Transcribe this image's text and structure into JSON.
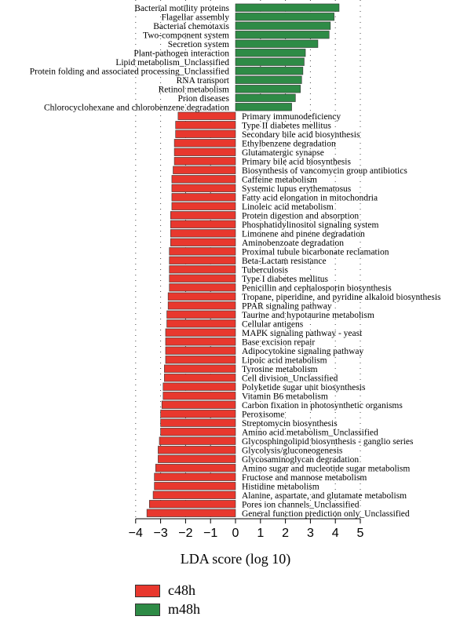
{
  "chart_data": {
    "type": "bar",
    "orientation": "horizontal",
    "xlabel": "LDA score (log 10)",
    "xlim": [
      -4,
      5
    ],
    "xticks": [
      "−4",
      "−3",
      "−2",
      "−1",
      "0",
      "1",
      "2",
      "3",
      "4",
      "5"
    ],
    "grid": "dotted vertical",
    "legend_position": "bottom-left",
    "series": [
      {
        "name": "c48h",
        "color": "#e8382e"
      },
      {
        "name": "m48h",
        "color": "#2e8b46"
      }
    ],
    "bars": [
      {
        "label": "Bacterial motility proteins",
        "value": 4.15,
        "group": "m48h"
      },
      {
        "label": "Flagellar assembly",
        "value": 3.95,
        "group": "m48h"
      },
      {
        "label": "Bacterial chemotaxis",
        "value": 3.8,
        "group": "m48h"
      },
      {
        "label": "Two-component system",
        "value": 3.75,
        "group": "m48h"
      },
      {
        "label": "Secretion system",
        "value": 3.3,
        "group": "m48h"
      },
      {
        "label": "Plant-pathogen interaction",
        "value": 2.8,
        "group": "m48h"
      },
      {
        "label": "Lipid metabolism_Unclassified",
        "value": 2.75,
        "group": "m48h"
      },
      {
        "label": "Protein folding and associated processing_Unclassified",
        "value": 2.7,
        "group": "m48h"
      },
      {
        "label": "RNA transport",
        "value": 2.65,
        "group": "m48h"
      },
      {
        "label": "Retinol metabolism",
        "value": 2.6,
        "group": "m48h"
      },
      {
        "label": "Prion diseases",
        "value": 2.4,
        "group": "m48h"
      },
      {
        "label": "Chlorocyclohexane and chlorobenzene degradation",
        "value": 2.25,
        "group": "m48h"
      },
      {
        "label": "Primary immunodeficiency",
        "value": -2.3,
        "group": "c48h"
      },
      {
        "label": "Type II diabetes mellitus",
        "value": -2.4,
        "group": "c48h"
      },
      {
        "label": "Secondary bile acid biosynthesis",
        "value": -2.4,
        "group": "c48h"
      },
      {
        "label": "Ethylbenzene degradation",
        "value": -2.45,
        "group": "c48h"
      },
      {
        "label": "Glutamatergic synapse",
        "value": -2.45,
        "group": "c48h"
      },
      {
        "label": "Primary bile acid biosynthesis",
        "value": -2.45,
        "group": "c48h"
      },
      {
        "label": "Biosynthesis of vancomycin group antibiotics",
        "value": -2.5,
        "group": "c48h"
      },
      {
        "label": "Caffeine metabolism",
        "value": -2.55,
        "group": "c48h"
      },
      {
        "label": "Systemic lupus erythematosus",
        "value": -2.55,
        "group": "c48h"
      },
      {
        "label": "Fatty acid elongation in mitochondria",
        "value": -2.55,
        "group": "c48h"
      },
      {
        "label": "Linoleic acid metabolism",
        "value": -2.55,
        "group": "c48h"
      },
      {
        "label": "Protein digestion and absorption",
        "value": -2.6,
        "group": "c48h"
      },
      {
        "label": "Phosphatidylinositol signaling system",
        "value": -2.6,
        "group": "c48h"
      },
      {
        "label": "Limonene and pinene degradation",
        "value": -2.6,
        "group": "c48h"
      },
      {
        "label": "Aminobenzoate degradation",
        "value": -2.6,
        "group": "c48h"
      },
      {
        "label": "Proximal tubule bicarbonate reclamation",
        "value": -2.65,
        "group": "c48h"
      },
      {
        "label": "Beta-Lactam resistance",
        "value": -2.65,
        "group": "c48h"
      },
      {
        "label": "Tuberculosis",
        "value": -2.65,
        "group": "c48h"
      },
      {
        "label": "Type I diabetes mellitus",
        "value": -2.65,
        "group": "c48h"
      },
      {
        "label": "Penicillin and cephalosporin biosynthesis",
        "value": -2.65,
        "group": "c48h"
      },
      {
        "label": "Tropane, piperidine, and pyridine alkaloid biosynthesis",
        "value": -2.7,
        "group": "c48h"
      },
      {
        "label": "PPAR signaling pathway",
        "value": -2.7,
        "group": "c48h"
      },
      {
        "label": "Taurine and hypotaurine metabolism",
        "value": -2.75,
        "group": "c48h"
      },
      {
        "label": "Cellular antigens",
        "value": -2.75,
        "group": "c48h"
      },
      {
        "label": "MAPK signaling pathway - yeast",
        "value": -2.8,
        "group": "c48h"
      },
      {
        "label": "Base excision repair",
        "value": -2.8,
        "group": "c48h"
      },
      {
        "label": "Adipocytokine signaling pathway",
        "value": -2.8,
        "group": "c48h"
      },
      {
        "label": "Lipoic acid metabolism",
        "value": -2.8,
        "group": "c48h"
      },
      {
        "label": "Tyrosine metabolism",
        "value": -2.85,
        "group": "c48h"
      },
      {
        "label": "Cell division_Unclassified",
        "value": -2.85,
        "group": "c48h"
      },
      {
        "label": "Polyketide sugar unit biosynthesis",
        "value": -2.9,
        "group": "c48h"
      },
      {
        "label": "Vitamin B6 metabolism",
        "value": -2.9,
        "group": "c48h"
      },
      {
        "label": "Carbon fixation in photosynthetic organisms",
        "value": -2.95,
        "group": "c48h"
      },
      {
        "label": "Peroxisome",
        "value": -3.0,
        "group": "c48h"
      },
      {
        "label": "Streptomycin biosynthesis",
        "value": -3.0,
        "group": "c48h"
      },
      {
        "label": "Amino acid metabolism_Unclassified",
        "value": -3.0,
        "group": "c48h"
      },
      {
        "label": "Glycosphingolipid biosynthesis - ganglio series",
        "value": -3.05,
        "group": "c48h"
      },
      {
        "label": "Glycolysis/gluconeogenesis",
        "value": -3.1,
        "group": "c48h"
      },
      {
        "label": "Glycosaminoglycan degradation",
        "value": -3.1,
        "group": "c48h"
      },
      {
        "label": "Amino sugar and nucleotide sugar metabolism",
        "value": -3.2,
        "group": "c48h"
      },
      {
        "label": "Fructose and mannose metabolism",
        "value": -3.25,
        "group": "c48h"
      },
      {
        "label": "Histidine metabolism",
        "value": -3.25,
        "group": "c48h"
      },
      {
        "label": "Alanine, aspartate, and glutamate metabolism",
        "value": -3.3,
        "group": "c48h"
      },
      {
        "label": "Pores ion channels_Unclassified",
        "value": -3.45,
        "group": "c48h"
      },
      {
        "label": "General function prediction only_Unclassified",
        "value": -3.55,
        "group": "c48h"
      }
    ]
  }
}
